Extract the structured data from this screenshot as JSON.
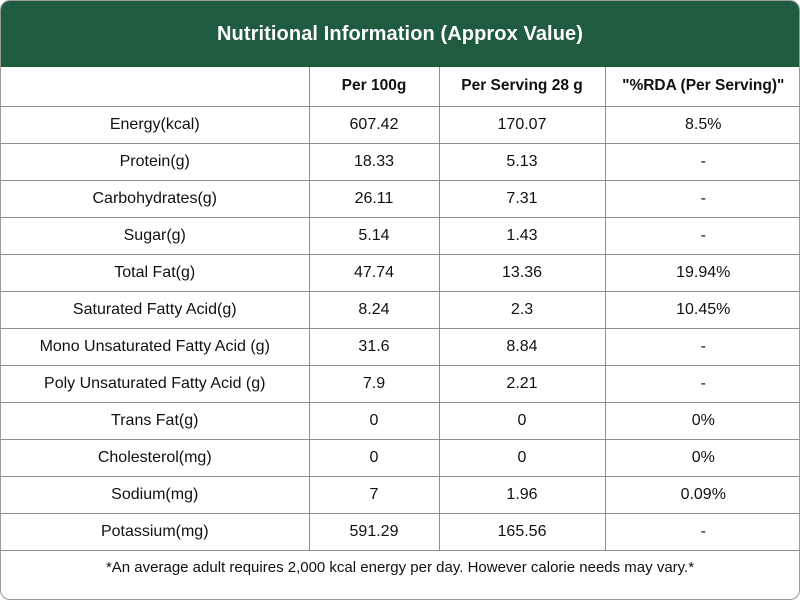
{
  "title": "Nutritional Information (Approx Value)",
  "columns": [
    "",
    "Per 100g",
    "Per Serving 28 g",
    "\"%RDA (Per Serving)\""
  ],
  "rows": [
    {
      "nutrient": "Energy(kcal)",
      "per100g": "607.42",
      "perServing": "170.07",
      "rda": "8.5%"
    },
    {
      "nutrient": "Protein(g)",
      "per100g": "18.33",
      "perServing": "5.13",
      "rda": "-"
    },
    {
      "nutrient": "Carbohydrates(g)",
      "per100g": "26.11",
      "perServing": "7.31",
      "rda": "-"
    },
    {
      "nutrient": "Sugar(g)",
      "per100g": "5.14",
      "perServing": "1.43",
      "rda": "-"
    },
    {
      "nutrient": "Total Fat(g)",
      "per100g": "47.74",
      "perServing": "13.36",
      "rda": "19.94%"
    },
    {
      "nutrient": "Saturated Fatty Acid(g)",
      "per100g": "8.24",
      "perServing": "2.3",
      "rda": "10.45%"
    },
    {
      "nutrient": "Mono Unsaturated Fatty Acid (g)",
      "per100g": "31.6",
      "perServing": "8.84",
      "rda": "-"
    },
    {
      "nutrient": "Poly Unsaturated Fatty Acid (g)",
      "per100g": "7.9",
      "perServing": "2.21",
      "rda": "-"
    },
    {
      "nutrient": "Trans Fat(g)",
      "per100g": "0",
      "perServing": "0",
      "rda": "0%"
    },
    {
      "nutrient": "Cholesterol(mg)",
      "per100g": "0",
      "perServing": "0",
      "rda": "0%"
    },
    {
      "nutrient": "Sodium(mg)",
      "per100g": "7",
      "perServing": "1.96",
      "rda": "0.09%"
    },
    {
      "nutrient": "Potassium(mg)",
      "per100g": "591.29",
      "perServing": "165.56",
      "rda": "-"
    }
  ],
  "footnote": "*An average adult requires 2,000 kcal energy per day. However calorie needs may vary.*",
  "colors": {
    "header_bg": "#1f5b3f",
    "header_text": "#ffffff",
    "border": "#8f8f8f"
  }
}
